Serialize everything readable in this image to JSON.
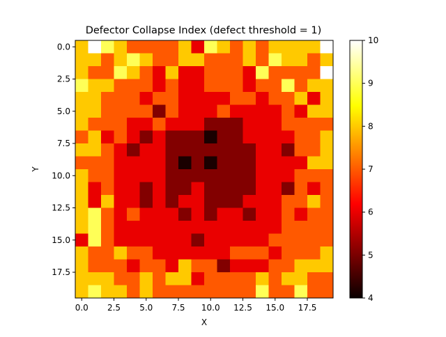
{
  "chart_data": {
    "type": "heatmap",
    "title": "Defector Collapse Index (defect threshold = 1)",
    "xlabel": "X",
    "ylabel": "Y",
    "xlim": [
      -0.5,
      19.5
    ],
    "ylim": [
      19.5,
      -0.5
    ],
    "xticks": [
      "0.0",
      "2.5",
      "5.0",
      "7.5",
      "10.0",
      "12.5",
      "15.0",
      "17.5"
    ],
    "yticks": [
      "0.0",
      "2.5",
      "5.0",
      "7.5",
      "10.0",
      "12.5",
      "15.0",
      "17.5"
    ],
    "colormap": "hot",
    "vmin": 4,
    "vmax": 10,
    "colorbar_ticks": [
      "4",
      "5",
      "6",
      "7",
      "8",
      "9",
      "10"
    ],
    "grid": false,
    "values": [
      [
        8,
        10,
        9,
        8,
        7,
        7,
        7,
        7,
        8,
        6,
        9,
        8,
        7,
        8,
        7,
        8,
        8,
        8,
        8,
        10
      ],
      [
        8,
        8,
        7,
        8,
        9,
        8,
        7,
        7,
        8,
        8,
        7,
        7,
        7,
        8,
        7,
        9,
        8,
        8,
        7,
        8
      ],
      [
        8,
        7,
        7,
        9,
        8,
        7,
        6,
        8,
        6,
        6,
        7,
        7,
        7,
        6,
        9,
        7,
        7,
        7,
        7,
        10
      ],
      [
        9,
        8,
        8,
        7,
        7,
        7,
        6,
        7,
        6,
        6,
        7,
        7,
        7,
        6,
        7,
        7,
        9,
        7,
        8,
        8
      ],
      [
        8,
        8,
        7,
        7,
        7,
        6,
        7,
        7,
        6,
        6,
        6,
        6,
        7,
        7,
        6,
        7,
        7,
        8,
        6,
        8
      ],
      [
        8,
        8,
        7,
        7,
        7,
        7,
        5,
        7,
        6,
        6,
        6,
        7,
        6,
        6,
        6,
        6,
        7,
        6,
        8,
        8
      ],
      [
        8,
        7,
        7,
        7,
        6,
        6,
        7,
        6,
        6,
        6,
        5,
        5,
        5,
        6,
        6,
        6,
        7,
        7,
        7,
        7
      ],
      [
        7,
        8,
        6,
        7,
        6,
        5,
        6,
        5,
        5,
        5,
        4,
        5,
        5,
        6,
        6,
        6,
        6,
        7,
        7,
        8
      ],
      [
        8,
        8,
        7,
        6,
        5,
        6,
        6,
        5,
        5,
        5,
        5,
        5,
        5,
        5,
        6,
        6,
        5,
        7,
        7,
        8
      ],
      [
        7,
        7,
        7,
        6,
        6,
        6,
        6,
        5,
        4,
        5,
        4,
        5,
        5,
        5,
        6,
        6,
        6,
        6,
        8,
        8
      ],
      [
        8,
        7,
        7,
        6,
        6,
        6,
        6,
        5,
        5,
        5,
        5,
        5,
        5,
        5,
        6,
        6,
        6,
        7,
        7,
        7
      ],
      [
        8,
        6,
        7,
        6,
        6,
        5,
        6,
        5,
        5,
        6,
        5,
        5,
        5,
        5,
        6,
        6,
        5,
        7,
        6,
        7
      ],
      [
        8,
        6,
        8,
        6,
        6,
        5,
        6,
        5,
        6,
        6,
        5,
        5,
        5,
        6,
        6,
        6,
        7,
        7,
        8,
        7
      ],
      [
        8,
        9,
        7,
        6,
        7,
        6,
        6,
        6,
        5,
        6,
        5,
        6,
        6,
        5,
        6,
        6,
        7,
        6,
        7,
        7
      ],
      [
        8,
        9,
        7,
        6,
        6,
        6,
        6,
        6,
        6,
        6,
        6,
        6,
        6,
        6,
        6,
        6,
        7,
        7,
        7,
        7
      ],
      [
        6,
        9,
        7,
        6,
        6,
        6,
        6,
        6,
        6,
        5,
        6,
        6,
        6,
        6,
        6,
        7,
        7,
        7,
        7,
        7
      ],
      [
        8,
        7,
        7,
        8,
        7,
        7,
        6,
        6,
        6,
        6,
        6,
        6,
        7,
        7,
        7,
        6,
        7,
        7,
        7,
        8
      ],
      [
        8,
        7,
        7,
        7,
        6,
        7,
        7,
        6,
        8,
        7,
        7,
        5,
        6,
        6,
        6,
        7,
        7,
        8,
        8,
        8
      ],
      [
        8,
        8,
        8,
        7,
        7,
        8,
        7,
        8,
        8,
        6,
        7,
        7,
        7,
        7,
        8,
        7,
        8,
        8,
        7,
        7
      ],
      [
        8,
        9,
        8,
        8,
        7,
        8,
        7,
        7,
        7,
        7,
        7,
        7,
        7,
        7,
        9,
        7,
        7,
        9,
        7,
        7
      ]
    ]
  }
}
